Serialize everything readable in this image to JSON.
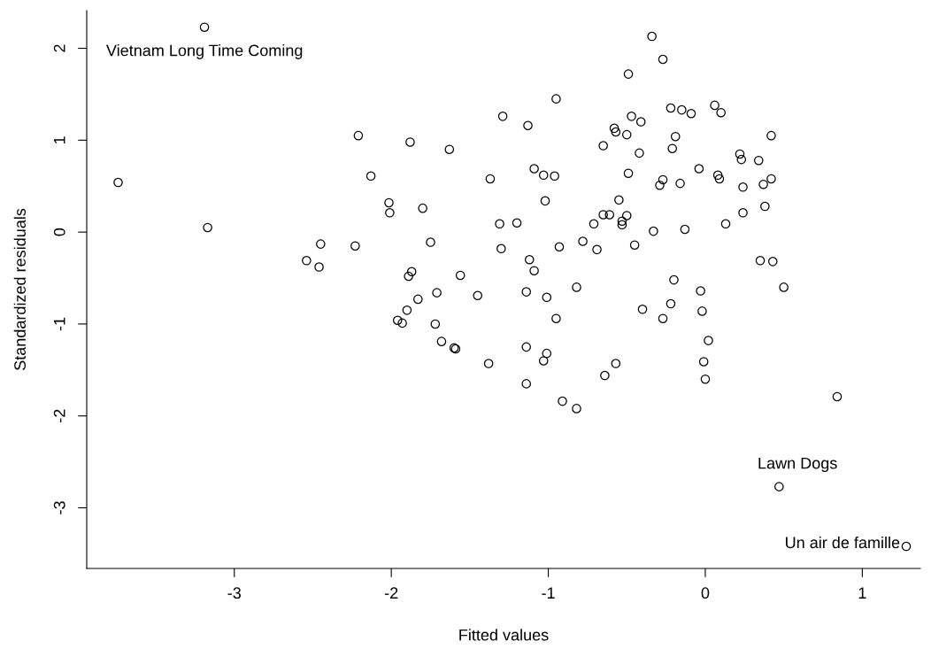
{
  "chart_data": {
    "type": "scatter",
    "xlabel": "Fitted values",
    "ylabel": "Standardized residuals",
    "marker": "circle",
    "xlim": [
      -3.94,
      1.37
    ],
    "ylim": [
      -3.66,
      2.41
    ],
    "xticks": [
      -3,
      -2,
      -1,
      0,
      1
    ],
    "yticks": [
      -3,
      -2,
      -1,
      0,
      1,
      2
    ],
    "series": [
      {
        "color": "#000000",
        "x": [
          -3.19,
          -3.74,
          -3.17,
          -2.21,
          -2.13,
          -2.015,
          -2.01,
          -2.45,
          -2.54,
          -2.46,
          -2.23,
          -0.34,
          -0.49,
          -0.95,
          -1.29,
          -1.13,
          -0.47,
          -0.41,
          -0.58,
          -0.57,
          -0.5,
          -0.65,
          -0.42,
          -1.88,
          -1.63,
          -1.09,
          -1.03,
          -0.96,
          -0.49,
          -1.37,
          -1.02,
          -0.55,
          -1.8,
          -0.65,
          -0.61,
          -0.5,
          -0.53,
          -0.53,
          -1.31,
          -1.2,
          -0.71,
          -0.33,
          -1.75,
          -1.3,
          -0.93,
          -0.78,
          -0.69,
          -0.45,
          -1.12,
          -1.09,
          -1.87,
          -1.89,
          -1.56,
          -0.82,
          -1.71,
          -1.45,
          -1.14,
          -1.01,
          -1.83,
          -0.27,
          -0.22,
          -0.15,
          -0.09,
          0.06,
          0.1,
          -0.19,
          0.42,
          -0.21,
          0.22,
          0.23,
          0.34,
          -0.04,
          0.08,
          0.09,
          -0.27,
          -0.29,
          -0.16,
          0.24,
          0.37,
          0.42,
          0.38,
          0.24,
          0.13,
          -0.13,
          0.35,
          0.43,
          -0.2,
          -0.03,
          0.5,
          -1.96,
          -1.93,
          -1.9,
          -1.72,
          -1.68,
          -1.6,
          -1.59,
          -1.38,
          -0.95,
          -0.4,
          -0.22,
          -0.27,
          -0.02,
          0.02,
          -1.14,
          -1.01,
          -1.03,
          -0.57,
          -0.64,
          -0.01,
          0.0,
          -1.14,
          -0.91,
          -0.82,
          0.84,
          0.47,
          1.28
        ],
        "values": [
          2.23,
          0.54,
          0.05,
          1.05,
          0.61,
          0.32,
          0.21,
          -0.13,
          -0.31,
          -0.38,
          -0.15,
          2.13,
          1.72,
          1.45,
          1.26,
          1.16,
          1.26,
          1.2,
          1.13,
          1.09,
          1.06,
          0.94,
          0.86,
          0.98,
          0.9,
          0.69,
          0.62,
          0.61,
          0.64,
          0.58,
          0.34,
          0.35,
          0.26,
          0.19,
          0.19,
          0.18,
          0.12,
          0.08,
          0.09,
          0.1,
          0.09,
          0.01,
          -0.11,
          -0.18,
          -0.16,
          -0.1,
          -0.19,
          -0.14,
          -0.3,
          -0.42,
          -0.43,
          -0.48,
          -0.47,
          -0.6,
          -0.66,
          -0.69,
          -0.65,
          -0.71,
          -0.73,
          1.88,
          1.35,
          1.33,
          1.29,
          1.38,
          1.3,
          1.04,
          1.05,
          0.91,
          0.85,
          0.79,
          0.78,
          0.69,
          0.62,
          0.58,
          0.57,
          0.51,
          0.53,
          0.49,
          0.52,
          0.58,
          0.28,
          0.21,
          0.09,
          0.03,
          -0.31,
          -0.32,
          -0.52,
          -0.64,
          -0.6,
          -0.96,
          -0.99,
          -0.85,
          -1.0,
          -1.19,
          -1.26,
          -1.27,
          -1.43,
          -0.94,
          -0.84,
          -0.78,
          -0.94,
          -0.86,
          -1.18,
          -1.25,
          -1.32,
          -1.4,
          -1.43,
          -1.56,
          -1.41,
          -1.6,
          -1.65,
          -1.84,
          -1.92,
          -1.79,
          -2.77,
          -3.42
        ]
      }
    ],
    "annotations": [
      {
        "text": "Vietnam Long Time Coming",
        "x": -3.19,
        "y": 2.23
      },
      {
        "text": "Lawn Dogs",
        "x": 0.47,
        "y": -2.77
      },
      {
        "text": "Un air de famille",
        "x": 1.28,
        "y": -3.42
      }
    ]
  }
}
